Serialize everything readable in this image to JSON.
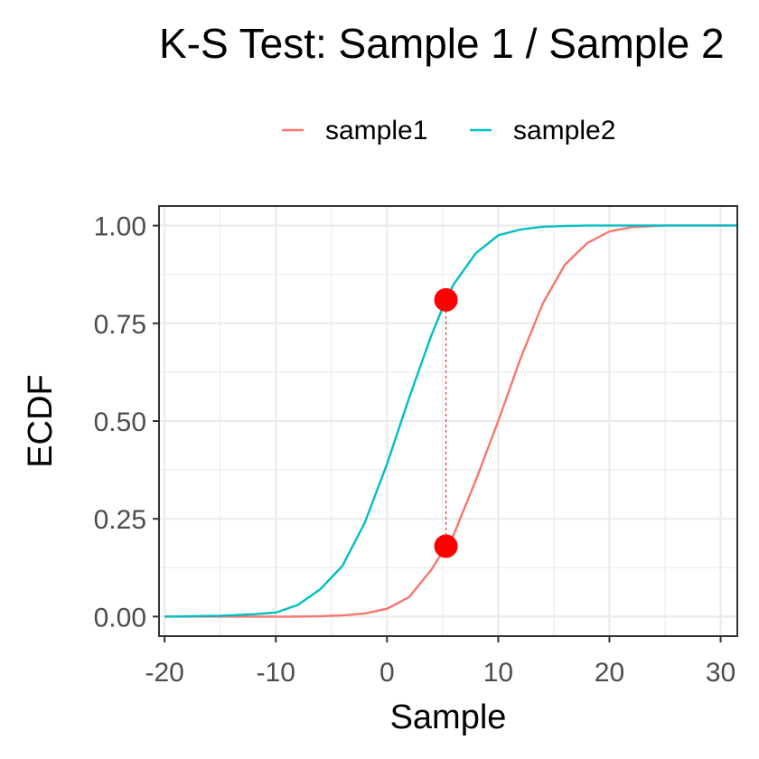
{
  "chart_data": {
    "type": "line",
    "title": "K-S Test: Sample 1 / Sample 2",
    "xlabel": "Sample",
    "ylabel": "ECDF",
    "xlim": [
      -20.5,
      31.5
    ],
    "ylim": [
      -0.05,
      1.05
    ],
    "x_ticks": [
      -20,
      -10,
      0,
      10,
      20,
      30
    ],
    "x_tick_labels": [
      "-20",
      "-10",
      "0",
      "10",
      "20",
      "30"
    ],
    "y_ticks": [
      0,
      0.25,
      0.5,
      0.75,
      1.0
    ],
    "y_tick_labels": [
      "0.00",
      "0.25",
      "0.50",
      "0.75",
      "1.00"
    ],
    "grid": true,
    "legend": {
      "position": "top",
      "entries": [
        "sample1",
        "sample2"
      ]
    },
    "series": [
      {
        "name": "sample1",
        "color": "#F8766D",
        "x": [
          -20,
          -15,
          -10,
          -8,
          -6,
          -4,
          -2,
          0,
          2,
          4,
          5.3,
          6,
          8,
          10,
          12,
          14,
          16,
          18,
          20,
          22,
          25,
          28,
          31.5
        ],
        "y": [
          0,
          0,
          0,
          0,
          0.001,
          0.003,
          0.008,
          0.02,
          0.05,
          0.12,
          0.18,
          0.21,
          0.35,
          0.5,
          0.66,
          0.8,
          0.9,
          0.955,
          0.985,
          0.996,
          1.0,
          1.0,
          1.0
        ]
      },
      {
        "name": "sample2",
        "color": "#00BFC4",
        "x": [
          -20,
          -15,
          -12,
          -10,
          -8,
          -6,
          -4,
          -2,
          0,
          2,
          4,
          5.3,
          6,
          8,
          10,
          12,
          14,
          16,
          18,
          20,
          25,
          31.5
        ],
        "y": [
          0,
          0.002,
          0.006,
          0.01,
          0.03,
          0.07,
          0.13,
          0.24,
          0.39,
          0.56,
          0.72,
          0.81,
          0.85,
          0.93,
          0.975,
          0.99,
          0.997,
          0.999,
          1.0,
          1.0,
          1.0,
          1.0
        ]
      }
    ],
    "ks_statistic": {
      "x": 5.3,
      "y_sample1": 0.18,
      "y_sample2": 0.81,
      "point_color": "#FF0000"
    }
  }
}
